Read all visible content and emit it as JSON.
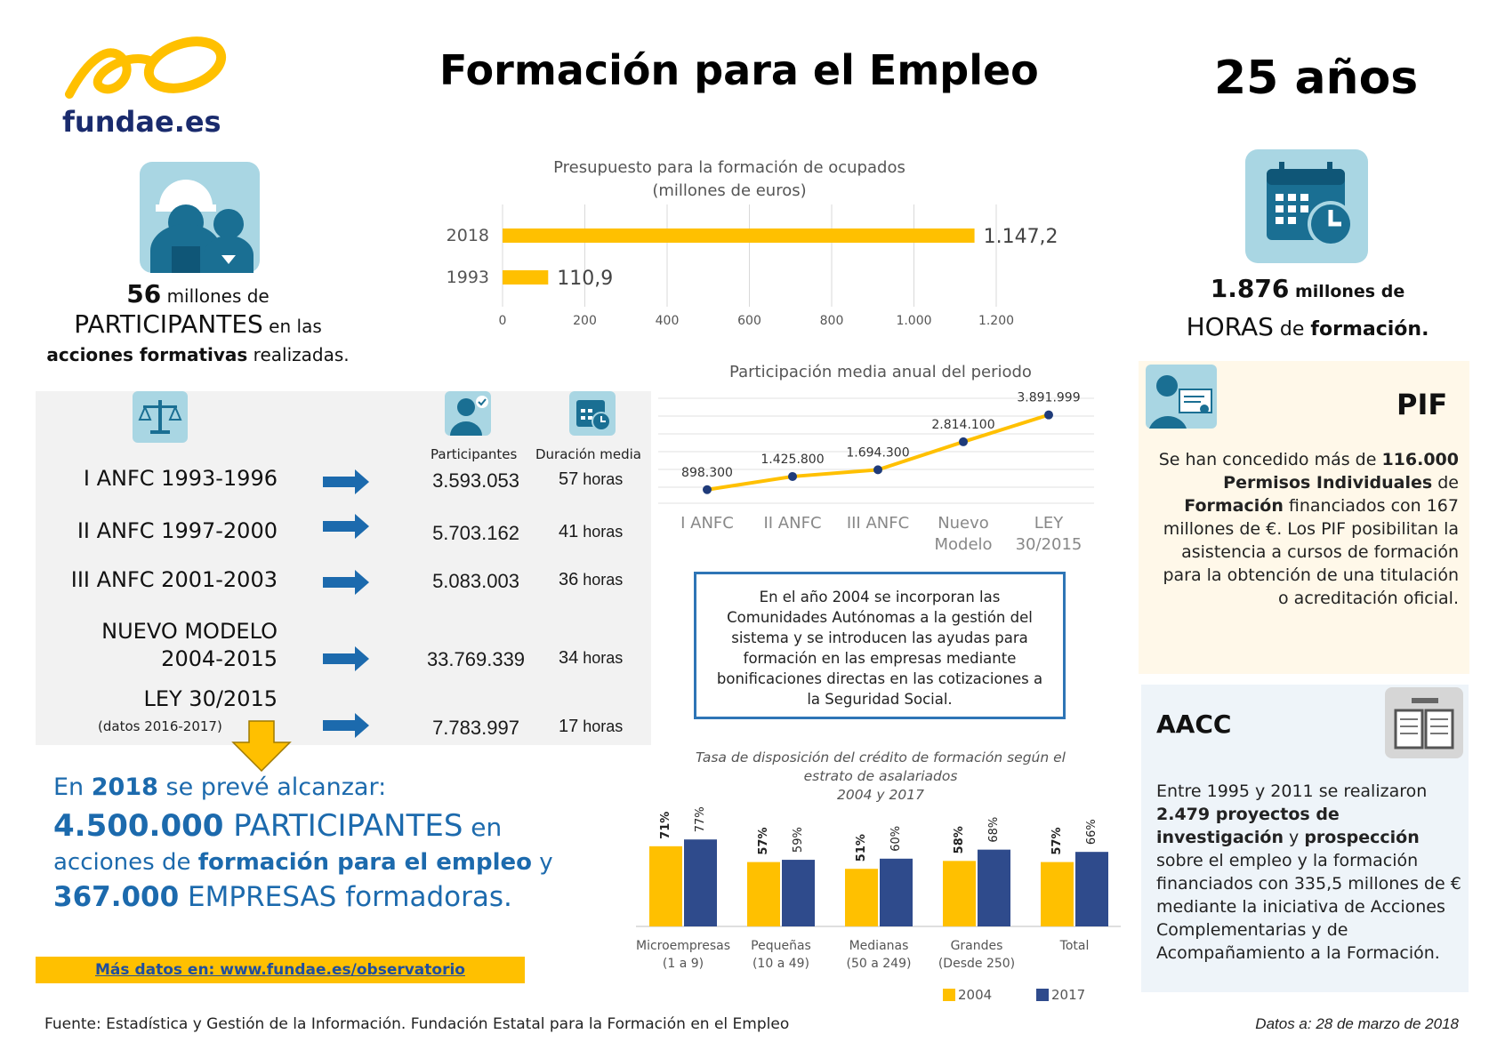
{
  "header": {
    "logo_text": "fundae.es",
    "title": "Formación para el Empleo",
    "years": "25 años"
  },
  "participants_stat": {
    "number": "56",
    "l1_rest": " millones de",
    "l2_bold": "PARTICIPANTES",
    "l2_rest": " en las",
    "l3_bold": "acciones formativas",
    "l3_rest": " realizadas."
  },
  "hours_stat": {
    "number": "1.876",
    "l1_rest": " millones de",
    "l2_bold": "HORAS",
    "l2_rest": " de ",
    "l2_bold2": "formación."
  },
  "budget_chart": {
    "chart_data": {
      "type": "bar",
      "orientation": "horizontal",
      "title": "Presupuesto para la formación de ocupados",
      "subtitle": "(millones de euros)",
      "categories": [
        "2018",
        "1993"
      ],
      "values": [
        1147.2,
        110.9
      ],
      "value_labels": [
        "1.147,2",
        "110,9"
      ],
      "xlim": [
        0,
        1200
      ],
      "ticks": [
        "0",
        "200",
        "400",
        "600",
        "800",
        "1.000",
        "1.200"
      ],
      "grid": true,
      "color": "#ffc000"
    }
  },
  "table": {
    "col_participants": "Participantes",
    "col_duration": "Duración media",
    "hours_unit": " horas",
    "rows": [
      {
        "label": "I ANFC 1993-1996",
        "participants": "3.593.053",
        "hours": "57"
      },
      {
        "label": "II ANFC 1997-2000",
        "participants": "5.703.162",
        "hours": "41"
      },
      {
        "label": "III ANFC 2001-2003",
        "participants": "5.083.003",
        "hours": "36"
      },
      {
        "label": "NUEVO MODELO",
        "label2": "2004-2015",
        "participants": "33.769.339",
        "hours": "34"
      },
      {
        "label": "LEY 30/2015",
        "note": "(datos 2016-2017)",
        "participants": "7.783.997",
        "hours": "17"
      }
    ]
  },
  "participation_chart": {
    "chart_data": {
      "type": "line",
      "title": "Participación media anual del periodo",
      "categories": [
        "I ANFC",
        "II ANFC",
        "III ANFC",
        "Nuevo Modelo",
        "LEY 30/2015"
      ],
      "category_lines": [
        [
          "I ANFC"
        ],
        [
          "II ANFC"
        ],
        [
          "III ANFC"
        ],
        [
          "Nuevo",
          "Modelo"
        ],
        [
          "LEY",
          "30/2015"
        ]
      ],
      "values": [
        898300,
        1425800,
        1694300,
        2814100,
        3891999
      ],
      "value_labels": [
        "898.300",
        "1.425.800",
        "1.694.300",
        "2.814.100",
        "3.891.999"
      ],
      "line_color": "#ffc000",
      "marker_color": "#1f3b7a",
      "grid": true
    }
  },
  "info_box": {
    "text": "En el año 2004 se incorporan las Comunidades Autónomas a la gestión del sistema y se introducen las ayudas para formación en las empresas mediante bonificaciones directas en las cotizaciones a la Seguridad Social."
  },
  "forecast": {
    "l1_a": "En ",
    "l1_b": "2018",
    "l1_c": " se prevé alcanzar:",
    "l2_a": "4.500.000",
    "l2_b": " PARTICIPANTES",
    "l2_c": " en",
    "l3_a": "acciones de ",
    "l3_b": "formación para el empleo",
    "l3_c": " y",
    "l4_a": "367.000",
    "l4_b": " EMPRESAS formadoras."
  },
  "more_link": "Más datos en: www.fundae.es/observatorio",
  "credit_chart": {
    "chart_data": {
      "type": "bar",
      "title": "Tasa de disposición del crédito de formación según el estrato de asalariados",
      "title_lines": [
        "Tasa de disposición del crédito de formación según el",
        "estrato de asalariados",
        "2004 y 2017"
      ],
      "categories": [
        "Microempresas (1 a 9)",
        "Pequeñas (10 a 49)",
        "Medianas (50 a 249)",
        "Grandes (Desde 250)",
        "Total"
      ],
      "category_lines": [
        [
          "Microempresas",
          "(1 a 9)"
        ],
        [
          "Pequeñas",
          "(10 a 49)"
        ],
        [
          "Medianas",
          "(50 a 249)"
        ],
        [
          "Grandes",
          "(Desde 250)"
        ],
        [
          "Total"
        ]
      ],
      "series": [
        {
          "name": "2004",
          "values": [
            71,
            57,
            51,
            58,
            57
          ],
          "color": "#ffc000"
        },
        {
          "name": "2017",
          "values": [
            77,
            59,
            60,
            68,
            66
          ],
          "color": "#2f4b8c"
        }
      ],
      "unit": "%",
      "legend": "bottom-right"
    }
  },
  "pif": {
    "title": "PIF",
    "text_html_parts": [
      "Se han concedido más de ",
      "116.000",
      " Permisos Individuales",
      " de ",
      "Formación",
      " financiados con 167 millones de €.",
      " Los PIF posibilitan la asistencia a cursos de formación para la obtención de una titulación o acreditación oficial."
    ]
  },
  "aacc": {
    "title": "AACC",
    "t1": "Entre 1995 y 2011 se realizaron ",
    "t2": "2.479 proyectos de investigación",
    "t3": " y ",
    "t4": "prospección",
    "t5": " sobre el empleo y la formación financiados con 335,5 millones de € mediante la iniciativa de  Acciones Complementarias y de Acompañamiento a la Formación."
  },
  "footer": {
    "source": "Fuente: Estadística y Gestión de la Información. Fundación Estatal para la Formación en el Empleo",
    "date": "Datos a: 28 de marzo de 2018"
  },
  "colors": {
    "yellow": "#ffc000",
    "navy": "#1a2b6d",
    "blue": "#1c6aad",
    "icon_bg": "#a9d6e3"
  }
}
